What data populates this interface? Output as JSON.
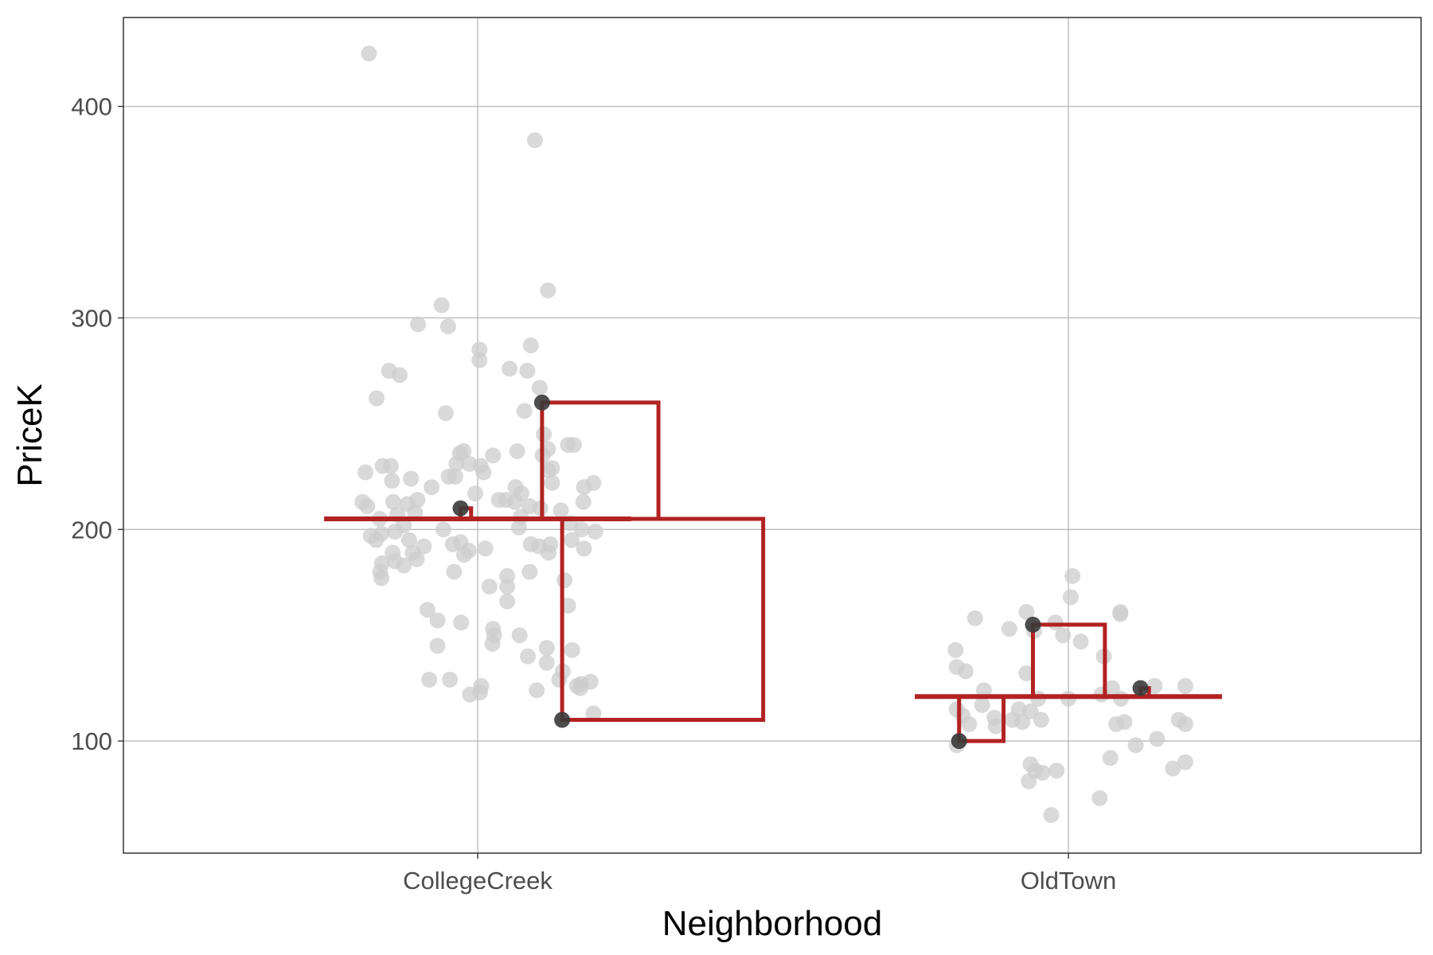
{
  "chart_data": {
    "type": "scatter",
    "xlabel": "Neighborhood",
    "ylabel": "PriceK",
    "categories": [
      "CollegeCreek",
      "OldTown"
    ],
    "ylim": [
      47,
      442
    ],
    "yticks": [
      100,
      200,
      300,
      400
    ],
    "grid": true,
    "colors": {
      "points": "#cccccc",
      "highlight": "#3a3a3a",
      "model": "#b22222",
      "gridline": "#bdbdbd",
      "panel_border": "#333333"
    },
    "groups": [
      {
        "name": "CollegeCreek",
        "mean": 205,
        "points": [
          [
            -0.184,
            425
          ],
          [
            0.097,
            384
          ],
          [
            0.119,
            313
          ],
          [
            -0.061,
            306
          ],
          [
            -0.101,
            297
          ],
          [
            -0.05,
            296
          ],
          [
            0.003,
            285
          ],
          [
            0.09,
            287
          ],
          [
            0.003,
            280
          ],
          [
            -0.15,
            275
          ],
          [
            -0.132,
            273
          ],
          [
            0.054,
            276
          ],
          [
            0.084,
            275
          ],
          [
            0.105,
            267
          ],
          [
            -0.171,
            262
          ],
          [
            0.079,
            256
          ],
          [
            -0.054,
            255
          ],
          [
            0.112,
            245
          ],
          [
            0.119,
            238
          ],
          [
            0.153,
            240
          ],
          [
            0.163,
            240
          ],
          [
            -0.19,
            227
          ],
          [
            -0.161,
            230
          ],
          [
            -0.147,
            230
          ],
          [
            -0.145,
            223
          ],
          [
            -0.113,
            224
          ],
          [
            -0.078,
            220
          ],
          [
            -0.049,
            225
          ],
          [
            -0.038,
            225
          ],
          [
            -0.036,
            231
          ],
          [
            -0.024,
            237
          ],
          [
            -0.03,
            236
          ],
          [
            -0.014,
            231
          ],
          [
            0.005,
            230
          ],
          [
            0.01,
            227
          ],
          [
            0.026,
            235
          ],
          [
            0.067,
            237
          ],
          [
            0.11,
            235
          ],
          [
            0.119,
            228
          ],
          [
            0.126,
            229
          ],
          [
            0.126,
            222
          ],
          [
            0.18,
            220
          ],
          [
            0.196,
            222
          ],
          [
            -0.195,
            213
          ],
          [
            -0.187,
            211
          ],
          [
            -0.143,
            213
          ],
          [
            -0.119,
            212
          ],
          [
            -0.102,
            214
          ],
          [
            -0.004,
            217
          ],
          [
            0.036,
            214
          ],
          [
            0.048,
            214
          ],
          [
            0.064,
            220
          ],
          [
            0.074,
            217
          ],
          [
            0.063,
            213
          ],
          [
            0.073,
            206
          ],
          [
            0.088,
            211
          ],
          [
            0.106,
            210
          ],
          [
            0.141,
            209
          ],
          [
            0.179,
            213
          ],
          [
            -0.166,
            205
          ],
          [
            -0.136,
            207
          ],
          [
            -0.125,
            202
          ],
          [
            -0.106,
            208
          ],
          [
            0.07,
            201
          ],
          [
            0.157,
            203
          ],
          [
            0.176,
            200
          ],
          [
            0.199,
            199
          ],
          [
            -0.181,
            197
          ],
          [
            -0.172,
            195
          ],
          [
            -0.163,
            198
          ],
          [
            -0.14,
            199
          ],
          [
            -0.116,
            195
          ],
          [
            -0.058,
            200
          ],
          [
            -0.042,
            193
          ],
          [
            -0.029,
            194
          ],
          [
            -0.023,
            188
          ],
          [
            -0.015,
            190
          ],
          [
            0.013,
            191
          ],
          [
            0.09,
            193
          ],
          [
            0.104,
            192
          ],
          [
            0.12,
            189
          ],
          [
            0.123,
            193
          ],
          [
            0.159,
            195
          ],
          [
            0.18,
            191
          ],
          [
            -0.144,
            189
          ],
          [
            -0.14,
            185
          ],
          [
            -0.125,
            183
          ],
          [
            -0.103,
            186
          ],
          [
            -0.11,
            189
          ],
          [
            -0.091,
            192
          ],
          [
            -0.162,
            184
          ],
          [
            -0.165,
            180
          ],
          [
            -0.163,
            177
          ],
          [
            -0.04,
            180
          ],
          [
            0.02,
            173
          ],
          [
            0.05,
            178
          ],
          [
            0.05,
            173
          ],
          [
            0.05,
            166
          ],
          [
            0.088,
            180
          ],
          [
            0.147,
            176
          ],
          [
            0.153,
            164
          ],
          [
            -0.085,
            162
          ],
          [
            -0.068,
            157
          ],
          [
            -0.028,
            156
          ],
          [
            0.026,
            153
          ],
          [
            0.028,
            150
          ],
          [
            0.025,
            146
          ],
          [
            0.071,
            150
          ],
          [
            0.085,
            140
          ],
          [
            0.117,
            144
          ],
          [
            0.117,
            137
          ],
          [
            0.16,
            143
          ],
          [
            0.144,
            133
          ],
          [
            0.138,
            129
          ],
          [
            0.168,
            126
          ],
          [
            0.175,
            127
          ],
          [
            0.174,
            125
          ],
          [
            -0.068,
            145
          ],
          [
            -0.082,
            129
          ],
          [
            -0.047,
            129
          ],
          [
            -0.013,
            122
          ],
          [
            0.006,
            126
          ],
          [
            0.004,
            123
          ],
          [
            0.1,
            124
          ],
          [
            0.191,
            128
          ],
          [
            0.196,
            113
          ]
        ],
        "highlighted": [
          [
            -0.029,
            210
          ],
          [
            0.109,
            260
          ],
          [
            0.143,
            110
          ]
        ]
      },
      {
        "name": "OldTown",
        "mean": 121,
        "points": [
          [
            0.007,
            178
          ],
          [
            -0.071,
            161
          ],
          [
            -0.158,
            158
          ],
          [
            -0.058,
            152
          ],
          [
            -0.022,
            156
          ],
          [
            -0.1,
            153
          ],
          [
            0.004,
            168
          ],
          [
            0.088,
            160
          ],
          [
            0.088,
            161
          ],
          [
            -0.191,
            143
          ],
          [
            -0.174,
            133
          ],
          [
            -0.189,
            135
          ],
          [
            -0.143,
            124
          ],
          [
            -0.009,
            150
          ],
          [
            0.021,
            147
          ],
          [
            0.06,
            140
          ],
          [
            0.074,
            125
          ],
          [
            0.089,
            120
          ],
          [
            0.146,
            126
          ],
          [
            0.198,
            126
          ],
          [
            -0.189,
            115
          ],
          [
            -0.179,
            112
          ],
          [
            -0.168,
            108
          ],
          [
            -0.146,
            117
          ],
          [
            -0.125,
            111
          ],
          [
            -0.071,
            132
          ],
          [
            -0.084,
            115
          ],
          [
            -0.064,
            114
          ],
          [
            -0.078,
            109
          ],
          [
            -0.051,
            120
          ],
          [
            0.0,
            120
          ],
          [
            0.056,
            122
          ],
          [
            0.081,
            108
          ],
          [
            0.095,
            109
          ],
          [
            0.15,
            101
          ],
          [
            0.187,
            110
          ],
          [
            0.198,
            108
          ],
          [
            -0.185,
            100
          ],
          [
            -0.189,
            98
          ],
          [
            -0.123,
            107
          ],
          [
            -0.095,
            110
          ],
          [
            -0.046,
            110
          ],
          [
            0.071,
            92
          ],
          [
            0.114,
            98
          ],
          [
            0.177,
            87
          ],
          [
            0.198,
            90
          ],
          [
            -0.067,
            81
          ],
          [
            -0.064,
            89
          ],
          [
            0.053,
            73
          ],
          [
            -0.029,
            65
          ],
          [
            -0.044,
            85
          ],
          [
            -0.02,
            86
          ],
          [
            -0.056,
            86
          ]
        ],
        "highlighted": [
          [
            -0.185,
            100
          ],
          [
            -0.06,
            155
          ],
          [
            0.122,
            125
          ]
        ]
      }
    ]
  }
}
